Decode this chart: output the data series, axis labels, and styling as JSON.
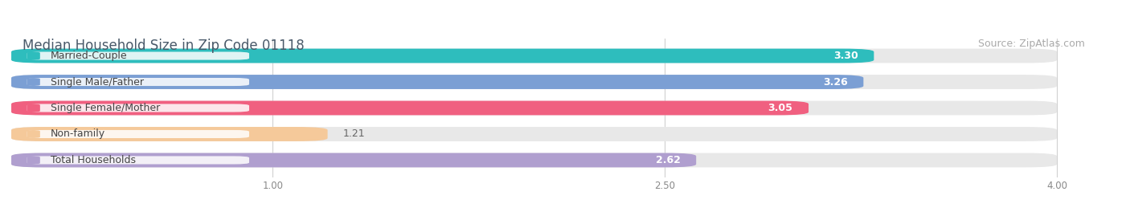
{
  "title": "Median Household Size in Zip Code 01118",
  "source": "Source: ZipAtlas.com",
  "categories": [
    "Married-Couple",
    "Single Male/Father",
    "Single Female/Mother",
    "Non-family",
    "Total Households"
  ],
  "values": [
    3.3,
    3.26,
    3.05,
    1.21,
    2.62
  ],
  "bar_colors": [
    "#2ebdbd",
    "#7b9fd4",
    "#f06080",
    "#f5c99a",
    "#b09fcf"
  ],
  "track_color": "#e8e8e8",
  "label_bg_color": "#ffffff",
  "label_color": "#444444",
  "value_color_inside": "#ffffff",
  "value_color_outside": "#666666",
  "xlim": [
    0,
    4.15
  ],
  "xmin": 0,
  "xmax": 4.0,
  "xticks": [
    1.0,
    2.5,
    4.0
  ],
  "title_fontsize": 12,
  "source_fontsize": 9,
  "label_fontsize": 9,
  "value_fontsize": 9,
  "bar_height": 0.55,
  "bar_gap": 1.0,
  "background_color": "#ffffff",
  "grid_color": "#d0d0d0",
  "value_threshold": 1.8
}
